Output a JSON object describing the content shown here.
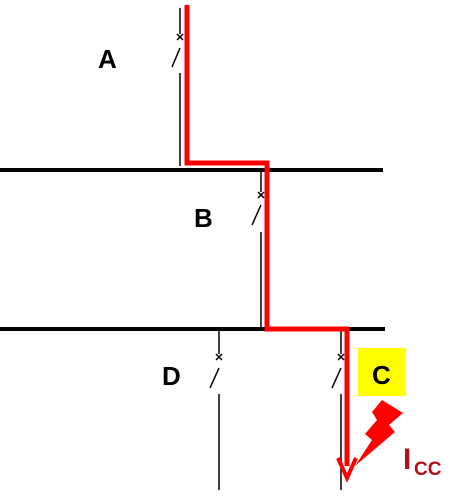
{
  "labels": {
    "breaker_a": "A",
    "breaker_b": "B",
    "breaker_c": "C",
    "breaker_d": "D"
  },
  "fault_current": {
    "symbol": "I",
    "subscript": "CC"
  },
  "colors": {
    "busbar": "#000000",
    "fault_path": "#ff0000",
    "fault_label": "#b0101a",
    "highlight_box": "#ffff00",
    "fault_flash": "#ff0000"
  },
  "icons": {
    "breaker_symbol": "circuit-breaker-icon",
    "fault_symbol": "lightning-bolt-icon"
  }
}
